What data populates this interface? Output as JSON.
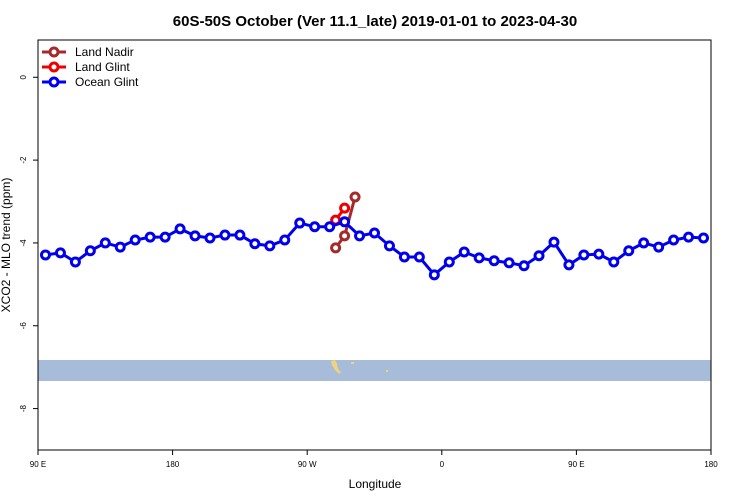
{
  "chart_data": {
    "type": "line",
    "title": "60S-50S October (Ver 11.1_late)   2019-01-01 to 2023-04-30",
    "xlabel": "Longitude",
    "ylabel": "XCO2 - MLO trend (ppm)",
    "xlim": [
      90,
      540
    ],
    "xticks": [
      {
        "value": 90,
        "label": "90 E"
      },
      {
        "value": 180,
        "label": "180"
      },
      {
        "value": 270,
        "label": "90 W"
      },
      {
        "value": 360,
        "label": "0"
      },
      {
        "value": 450,
        "label": "90 E"
      },
      {
        "value": 540,
        "label": "180"
      }
    ],
    "ylim": [
      -9,
      0.9
    ],
    "yticks": [
      0,
      -2,
      -4,
      -6,
      -8
    ],
    "legend": "top-left",
    "series": [
      {
        "name": "Land Nadir",
        "color": "#a52a2a",
        "x": [
          289,
          295,
          302
        ],
        "values": [
          -4.12,
          -3.83,
          -2.89
        ]
      },
      {
        "name": "Land Glint",
        "color": "#ee0000",
        "x": [
          289,
          295
        ],
        "values": [
          -3.45,
          -3.16
        ]
      },
      {
        "name": "Ocean Glint",
        "color": "#0000ee",
        "x": [
          95,
          105,
          115,
          125,
          135,
          145,
          155,
          165,
          175,
          185,
          195,
          205,
          215,
          225,
          235,
          245,
          255,
          265,
          275,
          285,
          295,
          305,
          315,
          325,
          335,
          345,
          355,
          365,
          375,
          385,
          395,
          405,
          415,
          425,
          435,
          445,
          455,
          465,
          475,
          485,
          495,
          505,
          515,
          525,
          535
        ],
        "values": [
          -4.29,
          -4.24,
          -4.46,
          -4.19,
          -4.0,
          -4.1,
          -3.93,
          -3.86,
          -3.86,
          -3.66,
          -3.83,
          -3.88,
          -3.81,
          -3.81,
          -4.02,
          -4.07,
          -3.93,
          -3.52,
          -3.61,
          -3.61,
          -3.49,
          -3.83,
          -3.76,
          -4.07,
          -4.34,
          -4.34,
          -4.77,
          -4.46,
          -4.22,
          -4.36,
          -4.43,
          -4.48,
          -4.55,
          -4.31,
          -3.98,
          -4.53,
          -4.29,
          -4.27,
          -4.46,
          -4.19,
          -4.0,
          -4.1,
          -3.93,
          -3.86,
          -3.88
        ]
      }
    ]
  }
}
